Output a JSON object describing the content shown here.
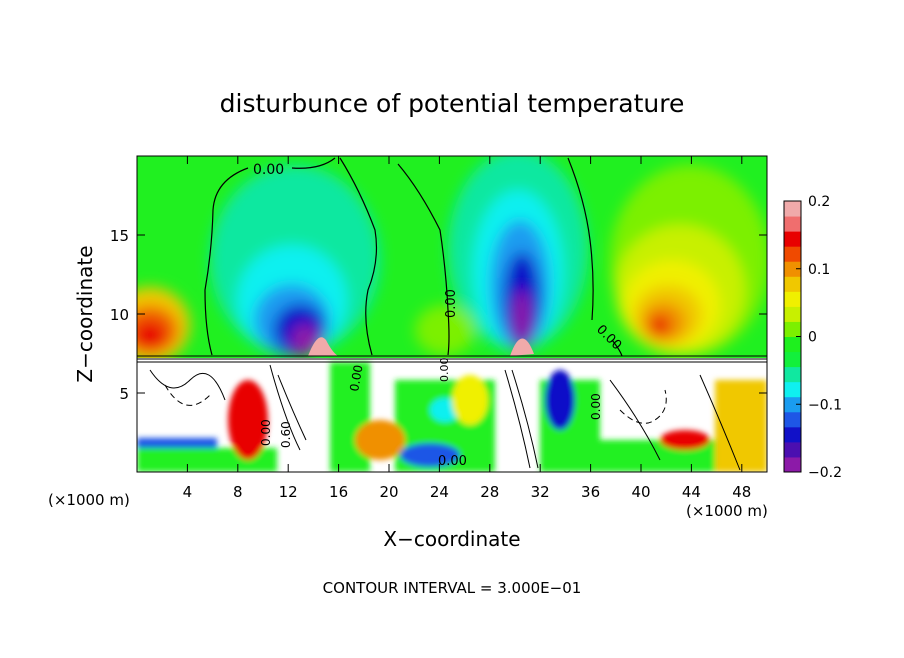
{
  "chart_data": {
    "type": "heatmap",
    "title": "disturbunce of potential temperature",
    "xlabel": "X−coordinate",
    "ylabel": "Z−coordinate",
    "x_unit": "(×1000 m)",
    "footer": "CONTOUR INTERVAL = 3.000E−01",
    "xlim": [
      0,
      50
    ],
    "ylim": [
      0,
      20
    ],
    "x_ticks": [
      4,
      8,
      12,
      16,
      20,
      24,
      28,
      32,
      36,
      40,
      44,
      48
    ],
    "y_ticks": [
      5,
      10,
      15
    ],
    "colorbar": {
      "range": [
        -0.2,
        0.2
      ],
      "tick_values": [
        0.2,
        0.1,
        0,
        -0.1,
        -0.2
      ],
      "tick_labels": [
        "0.2",
        "0.1",
        "0",
        "−0.1",
        "−0.2"
      ],
      "colors": [
        "#8c1aa8",
        "#4b0fb0",
        "#1111c8",
        "#1e56e6",
        "#1a9cf0",
        "#0ff0f0",
        "#10e8a0",
        "#12f03c",
        "#1ef01e",
        "#7cf000",
        "#c8f000",
        "#f0f000",
        "#f0c800",
        "#f09000",
        "#f04a00",
        "#e80000",
        "#f06e6e",
        "#f0aaaa"
      ]
    },
    "contour_labels": [
      "0.00",
      "0.00",
      "0.00",
      "0.00",
      "0.60",
      "0.00",
      "0.00",
      "0.00",
      "0.00"
    ]
  }
}
